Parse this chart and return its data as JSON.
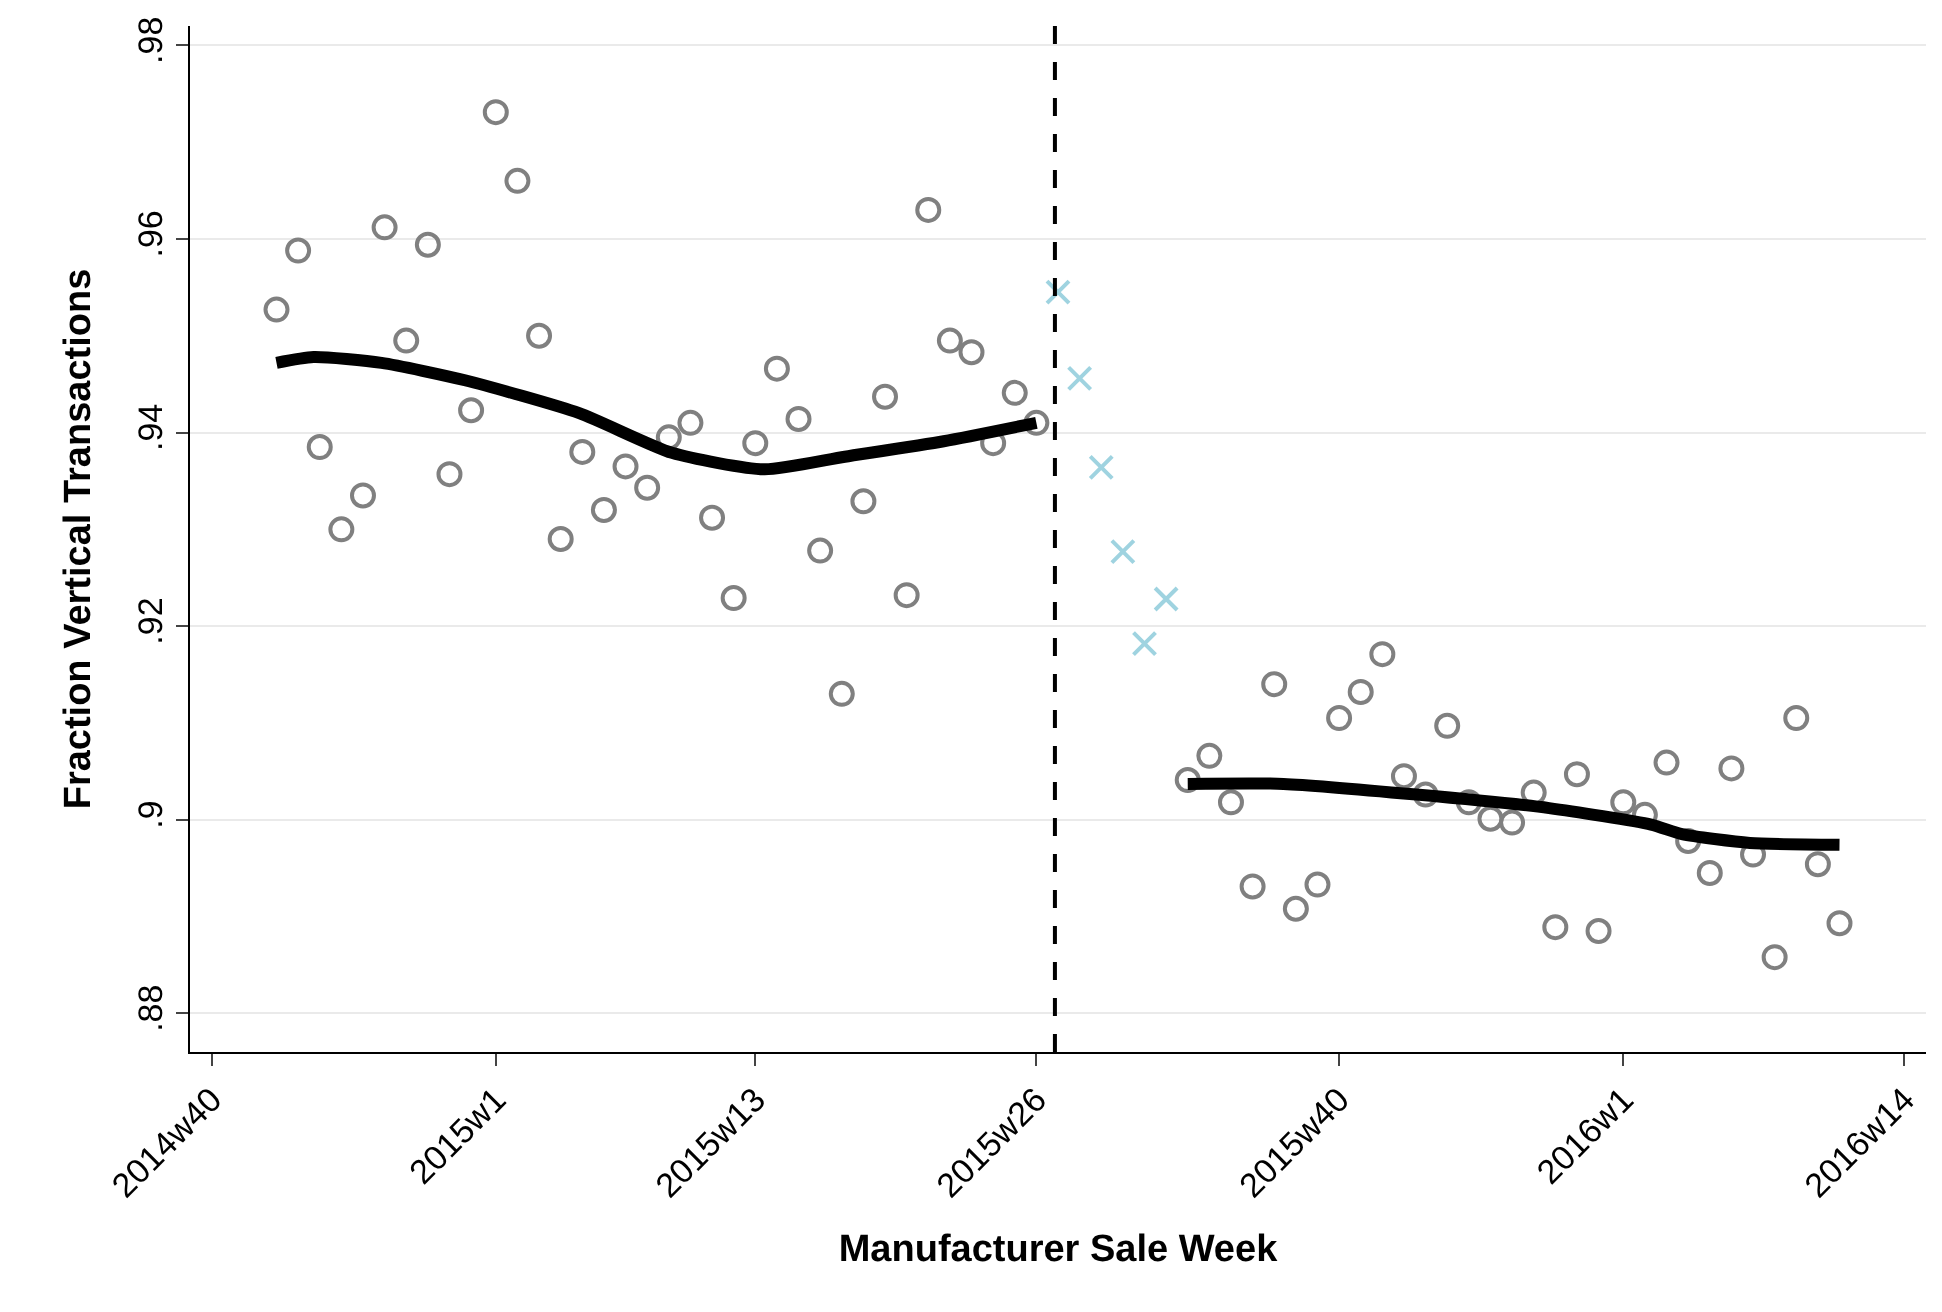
{
  "chart_data": {
    "type": "scatter",
    "xlabel": "Manufacturer Sale Week",
    "ylabel": "Fraction Vertical Transactions",
    "xlim": [
      "2014-09-24",
      "2016-04-08"
    ],
    "ylim": [
      0.876,
      0.982
    ],
    "xticks": [
      {
        "value": "2014-10-01",
        "label": "2014w40"
      },
      {
        "value": "2015-01-01",
        "label": "2015w1"
      },
      {
        "value": "2015-03-26",
        "label": "2015w13"
      },
      {
        "value": "2015-06-25",
        "label": "2015w26"
      },
      {
        "value": "2015-10-01",
        "label": "2015w40"
      },
      {
        "value": "2016-01-01",
        "label": "2016w1"
      },
      {
        "value": "2016-04-01",
        "label": "2016w14"
      }
    ],
    "yticks": [
      {
        "value": 0.88,
        "label": ".88"
      },
      {
        "value": 0.9,
        "label": ".9"
      },
      {
        "value": 0.92,
        "label": ".92"
      },
      {
        "value": 0.94,
        "label": ".94"
      },
      {
        "value": 0.96,
        "label": ".96"
      },
      {
        "value": 0.98,
        "label": ".98"
      }
    ],
    "grid": "y",
    "ref_lines": [
      {
        "axis": "x",
        "value": "2015-07-01",
        "color": "#000000",
        "line_style": "dashed"
      }
    ],
    "series": [
      {
        "marker": "circle",
        "color": "#808080",
        "x": [
          "2014-10-22",
          "2014-10-29",
          "2014-11-05",
          "2014-11-12",
          "2014-11-19",
          "2014-11-26",
          "2014-12-03",
          "2014-12-10",
          "2014-12-17",
          "2014-12-24",
          "2015-01-01",
          "2015-01-08",
          "2015-01-15",
          "2015-01-22",
          "2015-01-29",
          "2015-02-05",
          "2015-02-12",
          "2015-02-19",
          "2015-02-26",
          "2015-03-05",
          "2015-03-12",
          "2015-03-19",
          "2015-03-26",
          "2015-04-02",
          "2015-04-09",
          "2015-04-16",
          "2015-04-23",
          "2015-04-30",
          "2015-05-07",
          "2015-05-14",
          "2015-05-21",
          "2015-05-28",
          "2015-06-04",
          "2015-06-11",
          "2015-06-18",
          "2015-06-25"
        ],
        "values": [
          0.9527,
          0.9588,
          0.9385,
          0.93,
          0.9335,
          0.9612,
          0.9495,
          0.9594,
          0.9357,
          0.9423,
          0.9731,
          0.966,
          0.95,
          0.929,
          0.938,
          0.932,
          0.9365,
          0.9343,
          0.9395,
          0.941,
          0.9312,
          0.9229,
          0.9389,
          0.9466,
          0.9414,
          0.9278,
          0.913,
          0.9329,
          0.9437,
          0.9232,
          0.963,
          0.9495,
          0.9483,
          0.9389,
          0.9441,
          0.941
        ]
      },
      {
        "marker": "cross",
        "color": "#9fd3e0",
        "x": [
          "2015-07-02",
          "2015-07-09",
          "2015-07-16",
          "2015-07-23",
          "2015-07-30",
          "2015-08-06"
        ],
        "values": [
          0.9545,
          0.9456,
          0.9364,
          0.9277,
          0.9182,
          0.9228
        ]
      },
      {
        "marker": "circle",
        "color": "#808080",
        "x": [
          "2015-08-13",
          "2015-08-20",
          "2015-08-27",
          "2015-09-03",
          "2015-09-10",
          "2015-09-17",
          "2015-09-24",
          "2015-10-01",
          "2015-10-08",
          "2015-10-15",
          "2015-10-22",
          "2015-10-29",
          "2015-11-05",
          "2015-11-12",
          "2015-11-19",
          "2015-11-26",
          "2015-12-03",
          "2015-12-10",
          "2015-12-17",
          "2015-12-24",
          "2016-01-01",
          "2016-01-08",
          "2016-01-15",
          "2016-01-22",
          "2016-01-29",
          "2016-02-05",
          "2016-02-12",
          "2016-02-19",
          "2016-02-26",
          "2016-03-04",
          "2016-03-11"
        ],
        "values": [
          0.9041,
          0.9066,
          0.9018,
          0.8931,
          0.914,
          0.8908,
          0.8933,
          0.9105,
          0.9132,
          0.9171,
          0.9045,
          0.9026,
          0.9097,
          0.9018,
          0.9001,
          0.8997,
          0.9028,
          0.8889,
          0.9047,
          0.8885,
          0.9018,
          0.9005,
          0.9059,
          0.8978,
          0.8945,
          0.9053,
          0.8964,
          0.8858,
          0.9105,
          0.8954,
          0.8893
        ]
      },
      {
        "type": "line",
        "marker": "none",
        "line_style": "solid",
        "color": "#000000",
        "x": [
          "2014-10-22",
          "2014-11-03",
          "2014-11-25",
          "2014-12-22",
          "2015-01-28",
          "2015-02-27",
          "2015-03-29",
          "2015-04-24",
          "2015-05-26",
          "2015-06-25"
        ],
        "values": [
          0.9472,
          0.9478,
          0.9472,
          0.9454,
          0.942,
          0.9379,
          0.9362,
          0.9375,
          0.9391,
          0.941
        ]
      },
      {
        "type": "line",
        "marker": "none",
        "line_style": "solid",
        "color": "#000000",
        "x": [
          "2015-08-13",
          "2015-09-13",
          "2015-10-26",
          "2015-12-08",
          "2016-01-10",
          "2016-01-20",
          "2016-02-11",
          "2016-03-11"
        ],
        "values": [
          0.9037,
          0.9037,
          0.9026,
          0.9012,
          0.8995,
          0.8985,
          0.8976,
          0.8974
        ]
      }
    ]
  }
}
